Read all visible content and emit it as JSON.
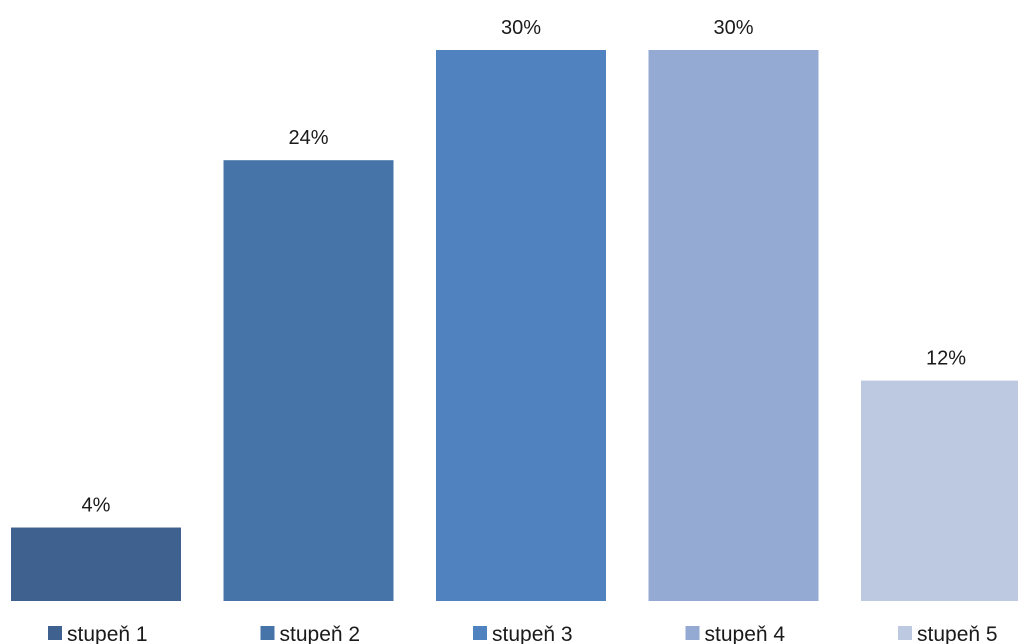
{
  "chart_data": {
    "type": "bar",
    "categories": [
      "stupeň 1",
      "stupeň 2",
      "stupeň 3",
      "stupeň 4",
      "stupeň 5"
    ],
    "values": [
      4,
      24,
      30,
      30,
      12
    ],
    "value_labels": [
      "4%",
      "24%",
      "30%",
      "30%",
      "12%"
    ],
    "colors": [
      "#3f6190",
      "#4674a8",
      "#4f82be",
      "#95aad2",
      "#bdc9e1"
    ],
    "ylim": [
      0,
      30
    ],
    "grid": false,
    "legend": "bottom",
    "title": "",
    "xlabel": "",
    "ylabel": ""
  }
}
